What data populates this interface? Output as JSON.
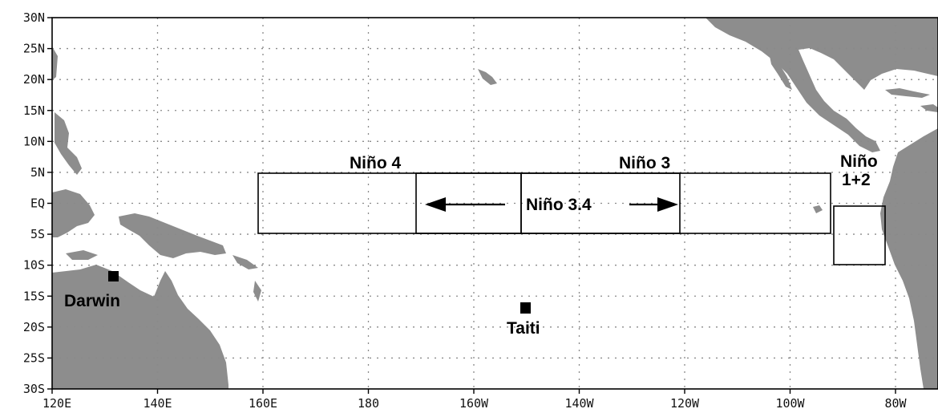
{
  "map": {
    "lat_labels": [
      "30N",
      "25N",
      "20N",
      "15N",
      "10N",
      "5N",
      "EQ",
      "5S",
      "10S",
      "15S",
      "20S",
      "25S",
      "30S"
    ],
    "lon_labels": [
      "120E",
      "140E",
      "160E",
      "180",
      "160W",
      "140W",
      "120W",
      "100W",
      "80W"
    ],
    "land_color": "#8d8d8d",
    "regions": [
      {
        "id": "nino4",
        "label": "Niño 4"
      },
      {
        "id": "nino3",
        "label": "Niño 3"
      },
      {
        "id": "nino34",
        "label": "Niño 3.4"
      },
      {
        "id": "nino12",
        "label_line1": "Niño",
        "label_line2": "1+2"
      }
    ],
    "stations": [
      {
        "id": "darwin",
        "label": "Darwin"
      },
      {
        "id": "taiti",
        "label": "Taiti"
      }
    ]
  }
}
